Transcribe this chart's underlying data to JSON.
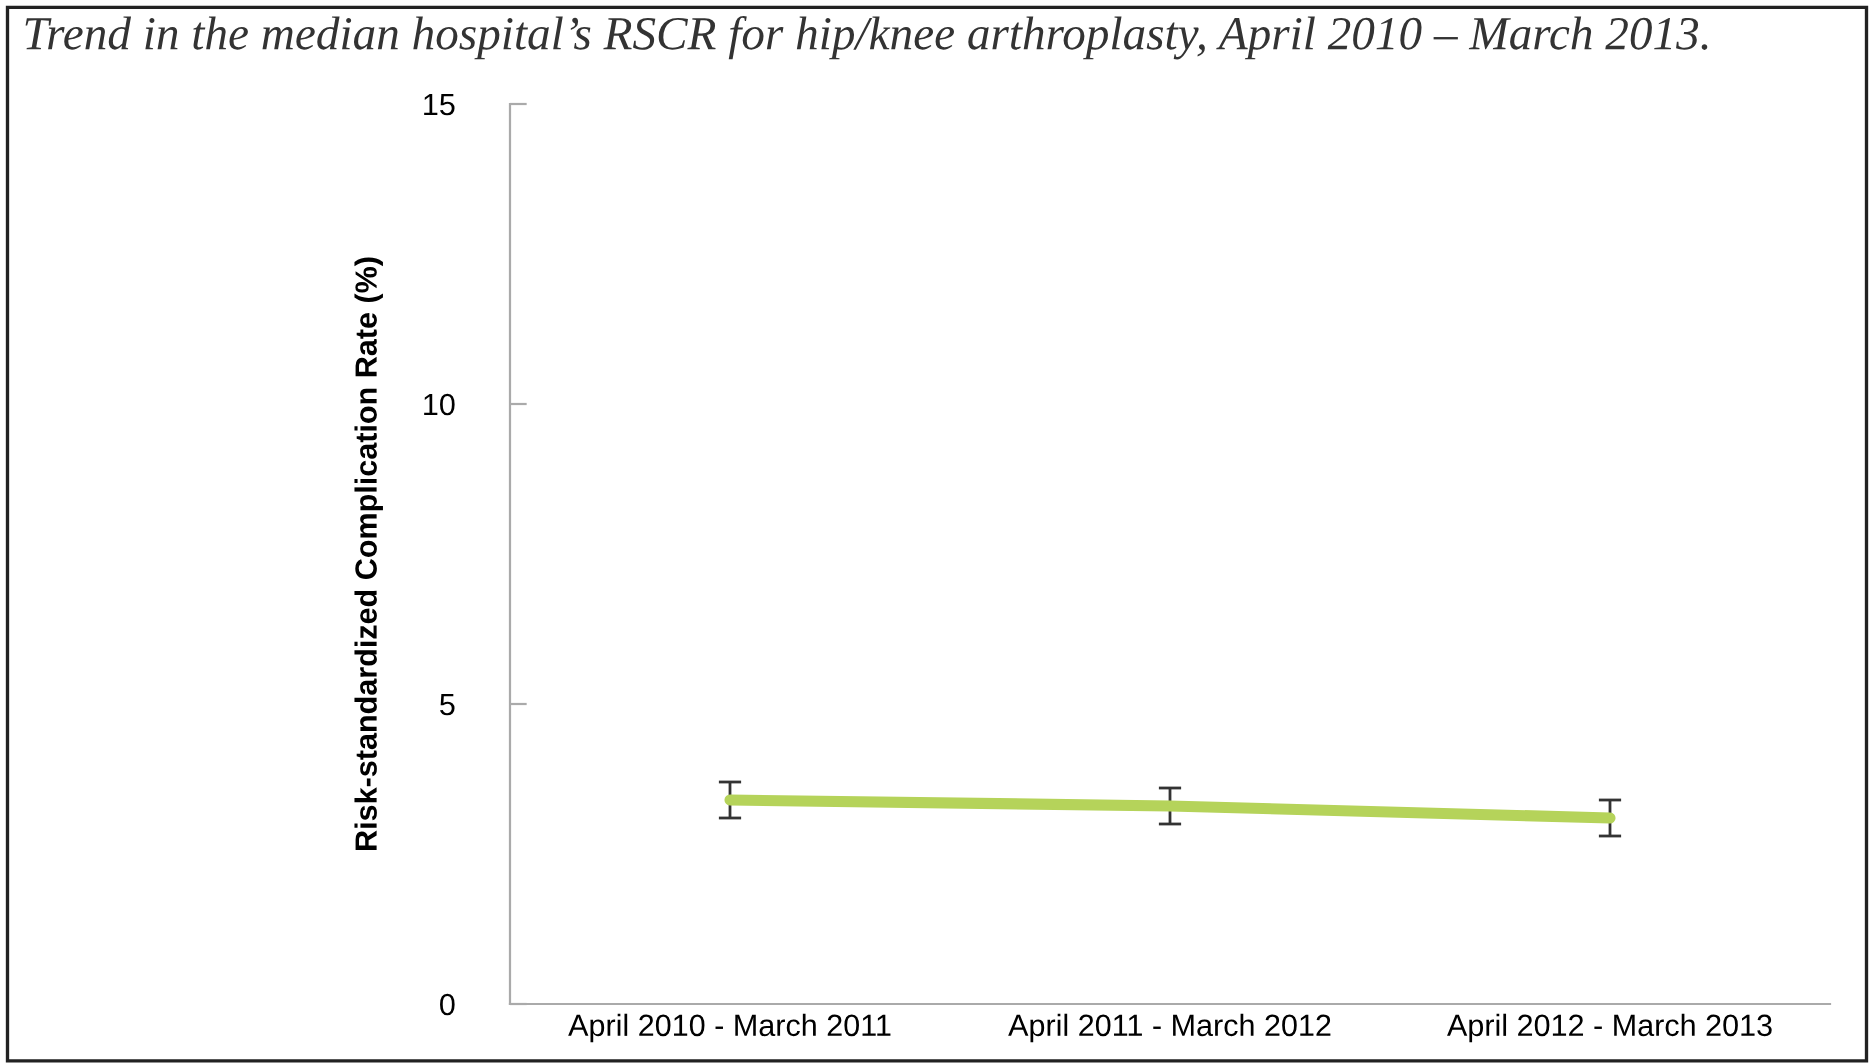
{
  "chart_data": {
    "type": "line",
    "title": "Trend in the median hospital’s RSCR for hip/knee arthroplasty, April 2010 – March 2013.",
    "ylabel": "Risk-standardized Complication Rate (%)",
    "categories": [
      "April 2010 - March 2011",
      "April 2011 - March 2012",
      "April 2012 - March 2013"
    ],
    "series": [
      {
        "color": "#b5d35a",
        "values": [
          3.4,
          3.3,
          3.1
        ],
        "errors": [
          0.3,
          0.3,
          0.3
        ]
      }
    ],
    "ylim": [
      0,
      15
    ],
    "yticks": [
      0,
      5,
      10,
      15
    ],
    "grid": false,
    "legend": false,
    "marker": "none",
    "line_style": "solid"
  }
}
